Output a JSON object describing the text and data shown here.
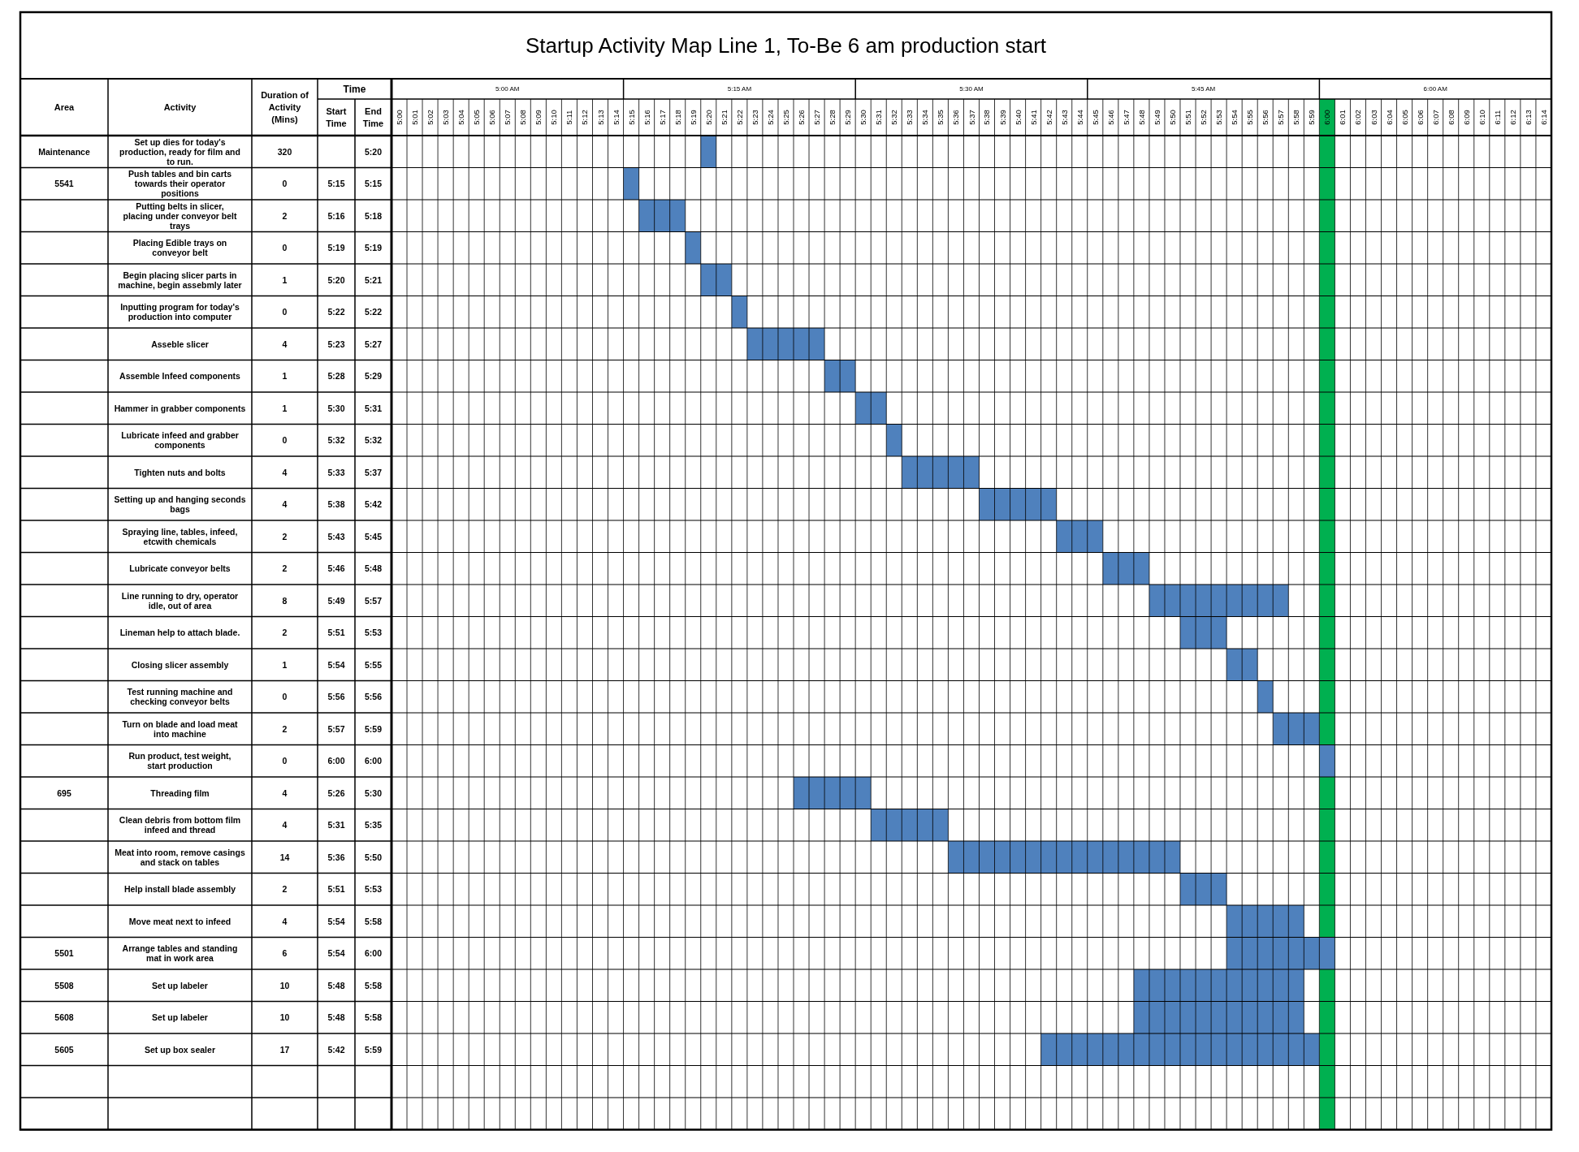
{
  "chart_data": [
    {
      "type": "other",
      "title": "Startup Activity Map Line 1, To-Be 6 am production start",
      "xlabel": "Time",
      "categories": [
        "Area",
        "Duration of Activity (Mins)",
        "Start Time",
        "End Time"
      ],
      "cell_labels": [
        [
          "Maintenance",
          "320",
          null,
          "5:20"
        ],
        [
          "5541",
          "0",
          "5:15",
          "5:15"
        ],
        [
          null,
          "2",
          "5:16",
          "5:18"
        ],
        [
          null,
          "0",
          "5:19",
          "5:19"
        ],
        [
          null,
          "1",
          "5:20",
          "5:21"
        ],
        [
          null,
          "0",
          "5:22",
          "5:22"
        ],
        [
          null,
          "4",
          "5:23",
          "5:27"
        ],
        [
          null,
          "1",
          "5:28",
          "5:29"
        ],
        [
          null,
          "1",
          "5:30",
          "5:31"
        ],
        [
          null,
          "0",
          "5:32",
          "5:32"
        ],
        [
          null,
          "4",
          "5:33",
          "5:37"
        ],
        [
          null,
          "4",
          "5:38",
          "5:42"
        ],
        [
          null,
          "2",
          "5:43",
          "5:45"
        ],
        [
          null,
          "2",
          "5:46",
          "5:48"
        ],
        [
          null,
          "8",
          "5:49",
          "5:57"
        ],
        [
          null,
          "2",
          "5:51",
          "5:53"
        ],
        [
          null,
          "1",
          "5:54",
          "5:55"
        ],
        [
          null,
          "0",
          "5:56",
          "5:56"
        ],
        [
          null,
          "2",
          "5:57",
          "5:59"
        ],
        [
          null,
          "0",
          "6:00",
          "6:00"
        ],
        [
          "695",
          "4",
          "5:26",
          "5:30"
        ],
        [
          null,
          "4",
          "5:31",
          "5:35"
        ],
        [
          null,
          "14",
          "5:36",
          "5:50"
        ],
        [
          null,
          "2",
          "5:51",
          "5:53"
        ],
        [
          null,
          "4",
          "5:54",
          "5:58"
        ],
        [
          "5501",
          "6",
          "5:54",
          "6:00"
        ],
        [
          "5508",
          "10",
          "5:48",
          "5:58"
        ],
        [
          "5608",
          "10",
          "5:48",
          "5:58"
        ],
        [
          "5605",
          "17",
          "5:42",
          "5:59"
        ],
        [
          null,
          null,
          null,
          null
        ],
        [
          null,
          null,
          null,
          null
        ]
      ]
    },
    {
      "type": "bar",
      "orientation": "horizontal",
      "color": "#4f81bd",
      "grid": true,
      "ylabel": "Activity",
      "categories": [
        "Set up dies for today's production, ready for film and to run.",
        "Push tables and bin carts towards their operator positions",
        "Putting belts in slicer, placing under conveyor belt trays",
        "Placing Edible trays on conveyor belt",
        "Begin placing slicer parts in machine, begin assebmly later",
        "Inputting program for today's production into computer",
        "Asseble slicer",
        "Assemble Infeed components",
        "Hammer in grabber components",
        "Lubricate infeed and grabber components",
        "Tighten  nuts and bolts",
        "Setting up and hanging seconds bags",
        "Spraying line, tables, infeed, etcwith chemicals",
        "Lubricate conveyor belts",
        "Line running to dry, operator idle, out of area",
        "Lineman help to attach blade.",
        "Closing slicer assembly",
        "Test running machine and checking conveyor belts",
        "Turn on blade and load meat into machine",
        "Run product, test weight, start production",
        "Threading film",
        "Clean debris from bottom film infeed and thread",
        "Meat into room, remove casings and stack on tables",
        "Help install blade assembly",
        "Move meat next to infeed",
        "Arrange tables and standing mat in work area",
        "Set up labeler",
        "Set up labeler",
        "Set up box sealer",
        null,
        null
      ],
      "base": [
        5.325,
        5.2417,
        5.2583,
        5.3083,
        5.325,
        5.3583,
        5.375,
        5.4583,
        5.4917,
        5.525,
        5.5417,
        5.625,
        5.7083,
        5.7583,
        5.8083,
        5.8417,
        5.8917,
        5.925,
        5.9417,
        5.9917,
        5.425,
        5.5083,
        5.5917,
        5.8417,
        5.8917,
        5.8917,
        5.7917,
        5.7917,
        5.6917,
        null,
        null
      ],
      "values": [
        0.0167,
        0.0167,
        0.05,
        0.0167,
        0.0333,
        0.0167,
        0.0833,
        0.0333,
        0.0333,
        0.0167,
        0.0833,
        0.0833,
        0.05,
        0.05,
        0.15,
        0.05,
        0.0333,
        0.0167,
        0.05,
        0.0167,
        0.0833,
        0.0833,
        0.25,
        0.05,
        0.0833,
        0.1167,
        0.1833,
        0.1833,
        0.3,
        null,
        null
      ],
      "bands": [
        {
          "axis": "x",
          "from": 5.9917,
          "to": 6.0083,
          "color": "#00b050"
        }
      ],
      "annotations": [
        "5:00 AM",
        "5:15 AM",
        "5:30 AM",
        "5:45 AM",
        "6:00 AM"
      ],
      "xlim": [
        4.9917,
        6.2417
      ],
      "xticks": [
        {
          "value": 5,
          "label": "5:00"
        },
        {
          "value": 5.0167,
          "label": "5:01"
        },
        {
          "value": 5.0333,
          "label": "5:02"
        },
        {
          "value": 5.05,
          "label": "5:03"
        },
        {
          "value": 5.0667,
          "label": "5:04"
        },
        {
          "value": 5.0833,
          "label": "5:05"
        },
        {
          "value": 5.1,
          "label": "5:06"
        },
        {
          "value": 5.1167,
          "label": "5:07"
        },
        {
          "value": 5.1333,
          "label": "5:08"
        },
        {
          "value": 5.15,
          "label": "5:09"
        },
        {
          "value": 5.1667,
          "label": "5:10"
        },
        {
          "value": 5.1833,
          "label": "5:11"
        },
        {
          "value": 5.2,
          "label": "5:12"
        },
        {
          "value": 5.2167,
          "label": "5:13"
        },
        {
          "value": 5.2333,
          "label": "5:14"
        },
        {
          "value": 5.25,
          "label": "5:15"
        },
        {
          "value": 5.2667,
          "label": "5:16"
        },
        {
          "value": 5.2833,
          "label": "5:17"
        },
        {
          "value": 5.3,
          "label": "5:18"
        },
        {
          "value": 5.3167,
          "label": "5:19"
        },
        {
          "value": 5.3333,
          "label": "5:20"
        },
        {
          "value": 5.35,
          "label": "5:21"
        },
        {
          "value": 5.3667,
          "label": "5:22"
        },
        {
          "value": 5.3833,
          "label": "5:23"
        },
        {
          "value": 5.4,
          "label": "5:24"
        },
        {
          "value": 5.4167,
          "label": "5:25"
        },
        {
          "value": 5.4333,
          "label": "5:26"
        },
        {
          "value": 5.45,
          "label": "5:27"
        },
        {
          "value": 5.4667,
          "label": "5:28"
        },
        {
          "value": 5.4833,
          "label": "5:29"
        },
        {
          "value": 5.5,
          "label": "5:30"
        },
        {
          "value": 5.5167,
          "label": "5:31"
        },
        {
          "value": 5.5333,
          "label": "5:32"
        },
        {
          "value": 5.55,
          "label": "5:33"
        },
        {
          "value": 5.5667,
          "label": "5:34"
        },
        {
          "value": 5.5833,
          "label": "5:35"
        },
        {
          "value": 5.6,
          "label": "5:36"
        },
        {
          "value": 5.6167,
          "label": "5:37"
        },
        {
          "value": 5.6333,
          "label": "5:38"
        },
        {
          "value": 5.65,
          "label": "5:39"
        },
        {
          "value": 5.6667,
          "label": "5:40"
        },
        {
          "value": 5.6833,
          "label": "5:41"
        },
        {
          "value": 5.7,
          "label": "5:42"
        },
        {
          "value": 5.7167,
          "label": "5:43"
        },
        {
          "value": 5.7333,
          "label": "5:44"
        },
        {
          "value": 5.75,
          "label": "5:45"
        },
        {
          "value": 5.7667,
          "label": "5:46"
        },
        {
          "value": 5.7833,
          "label": "5:47"
        },
        {
          "value": 5.8,
          "label": "5:48"
        },
        {
          "value": 5.8167,
          "label": "5:49"
        },
        {
          "value": 5.8333,
          "label": "5:50"
        },
        {
          "value": 5.85,
          "label": "5:51"
        },
        {
          "value": 5.8667,
          "label": "5:52"
        },
        {
          "value": 5.8833,
          "label": "5:53"
        },
        {
          "value": 5.9,
          "label": "5:54"
        },
        {
          "value": 5.9167,
          "label": "5:55"
        },
        {
          "value": 5.9333,
          "label": "5:56"
        },
        {
          "value": 5.95,
          "label": "5:57"
        },
        {
          "value": 5.9667,
          "label": "5:58"
        },
        {
          "value": 5.9833,
          "label": "5:59"
        },
        {
          "value": 6,
          "label": "6:00"
        },
        {
          "value": 6.0167,
          "label": "6:01"
        },
        {
          "value": 6.0333,
          "label": "6:02"
        },
        {
          "value": 6.05,
          "label": "6:03"
        },
        {
          "value": 6.0667,
          "label": "6:04"
        },
        {
          "value": 6.0833,
          "label": "6:05"
        },
        {
          "value": 6.1,
          "label": "6:06"
        },
        {
          "value": 6.1167,
          "label": "6:07"
        },
        {
          "value": 6.1333,
          "label": "6:08"
        },
        {
          "value": 6.15,
          "label": "6:09"
        },
        {
          "value": 6.1667,
          "label": "6:10"
        },
        {
          "value": 6.1833,
          "label": "6:11"
        },
        {
          "value": 6.2,
          "label": "6:12"
        },
        {
          "value": 6.2167,
          "label": "6:13"
        },
        {
          "value": 6.2333,
          "label": "6:14"
        }
      ]
    }
  ]
}
